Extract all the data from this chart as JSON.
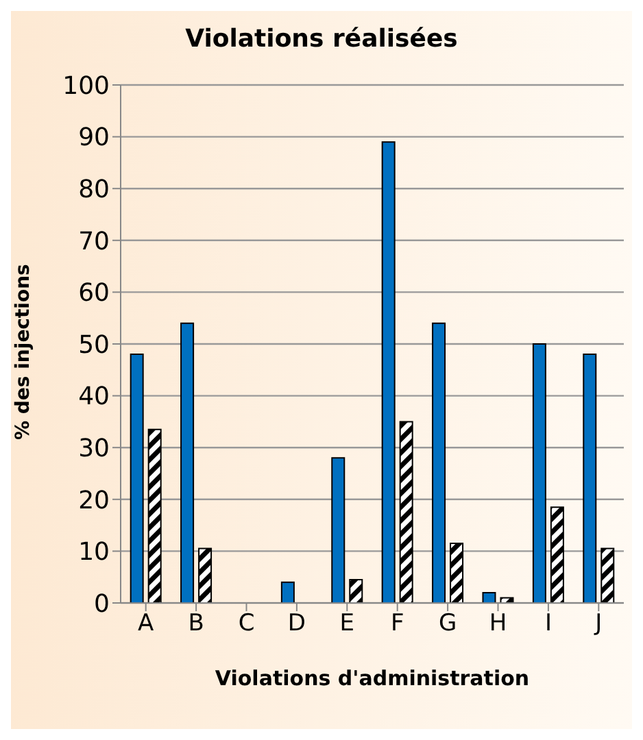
{
  "chart_data": {
    "type": "bar",
    "title": "Violations réalisées",
    "xlabel": "Violations d'administration",
    "ylabel": "% des injections",
    "categories": [
      "A",
      "B",
      "C",
      "D",
      "E",
      "F",
      "G",
      "H",
      "I",
      "J"
    ],
    "series": [
      {
        "color": "#0070c0",
        "values": [
          48,
          54,
          0,
          4,
          28,
          89,
          54,
          2,
          50,
          48
        ]
      },
      {
        "color": "#000000",
        "values": [
          33.5,
          10.5,
          0,
          0,
          4.5,
          35,
          11.5,
          1,
          18.5,
          10.5
        ]
      }
    ],
    "ylim": [
      0,
      100
    ],
    "yticks": [
      0,
      10,
      20,
      30,
      40,
      50,
      60,
      70,
      80,
      90,
      100
    ],
    "grid": "y"
  }
}
